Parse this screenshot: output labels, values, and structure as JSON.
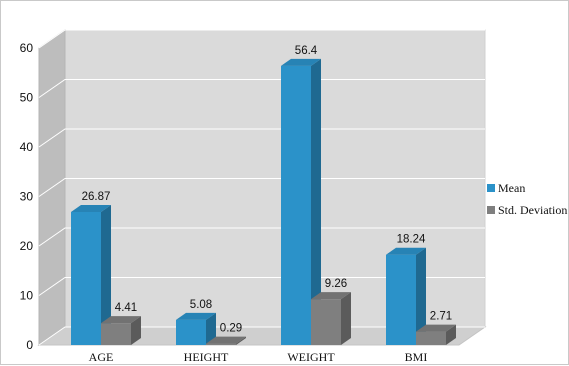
{
  "chart_data": {
    "type": "bar",
    "categories": [
      "AGE",
      "HEIGHT",
      "WEIGHT",
      "BMI"
    ],
    "series": [
      {
        "name": "Mean",
        "values": [
          26.87,
          5.08,
          56.4,
          18.24
        ],
        "labels": [
          "26.87",
          "5.08",
          "56.4",
          "18.24"
        ],
        "color": "#2b92c9"
      },
      {
        "name": "Std. Deviation",
        "values": [
          4.41,
          0.29,
          9.26,
          2.71
        ],
        "labels": [
          "4.41",
          "0.29",
          "9.26",
          "2.71"
        ],
        "color": "#7f7f7f"
      }
    ],
    "ylim": [
      0,
      60
    ],
    "yticks": [
      "0",
      "10",
      "20",
      "30",
      "40",
      "50",
      "60"
    ],
    "grid": true,
    "legend_position": "right",
    "style": "3d-clustered-column"
  }
}
